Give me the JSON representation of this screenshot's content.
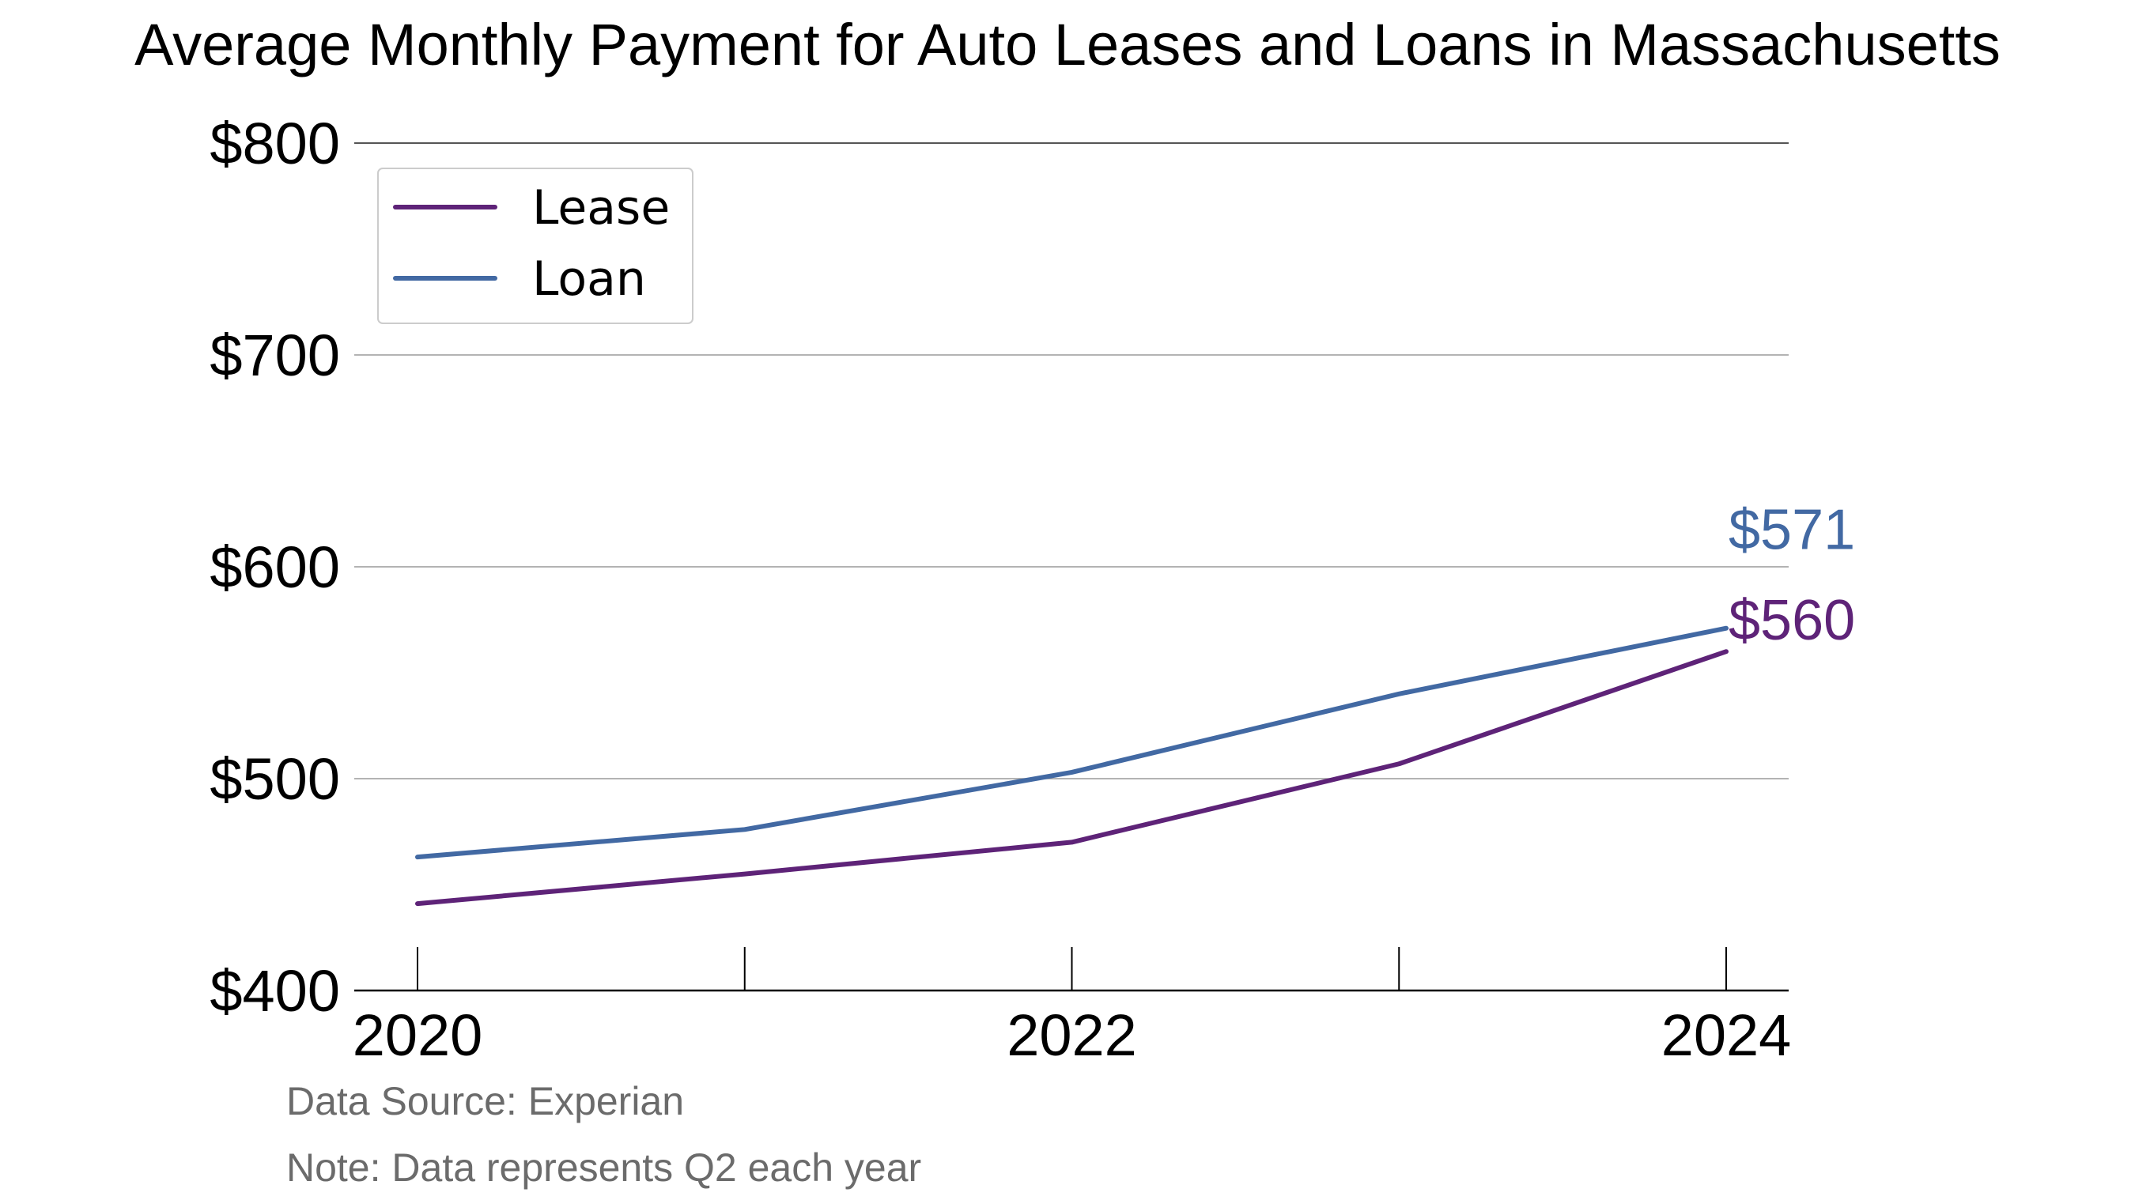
{
  "chart_data": {
    "type": "line",
    "title": "Average Monthly Payment for Auto Leases and Loans in Massachusetts",
    "xlabel": "",
    "ylabel": "",
    "x": [
      2020,
      2021,
      2022,
      2023,
      2024
    ],
    "x_tick_labels": [
      "2020",
      "2022",
      "2024"
    ],
    "y_tick_values": [
      400,
      500,
      600,
      700,
      800
    ],
    "y_tick_labels": [
      "$400",
      "$500",
      "$600",
      "$700",
      "$800"
    ],
    "xlim": [
      2020,
      2024
    ],
    "ylim": [
      400,
      800
    ],
    "grid": "horizontal",
    "legend_position": "top-left",
    "series": [
      {
        "name": "Lease",
        "color": "#5e2378",
        "values": [
          441,
          455,
          470,
          507,
          560
        ],
        "end_label": "$560"
      },
      {
        "name": "Loan",
        "color": "#4269a3",
        "values": [
          463,
          476,
          503,
          540,
          571
        ],
        "end_label": "$571"
      }
    ],
    "notes": [
      "Data Source: Experian",
      "Note: Data represents Q2 each year"
    ]
  }
}
